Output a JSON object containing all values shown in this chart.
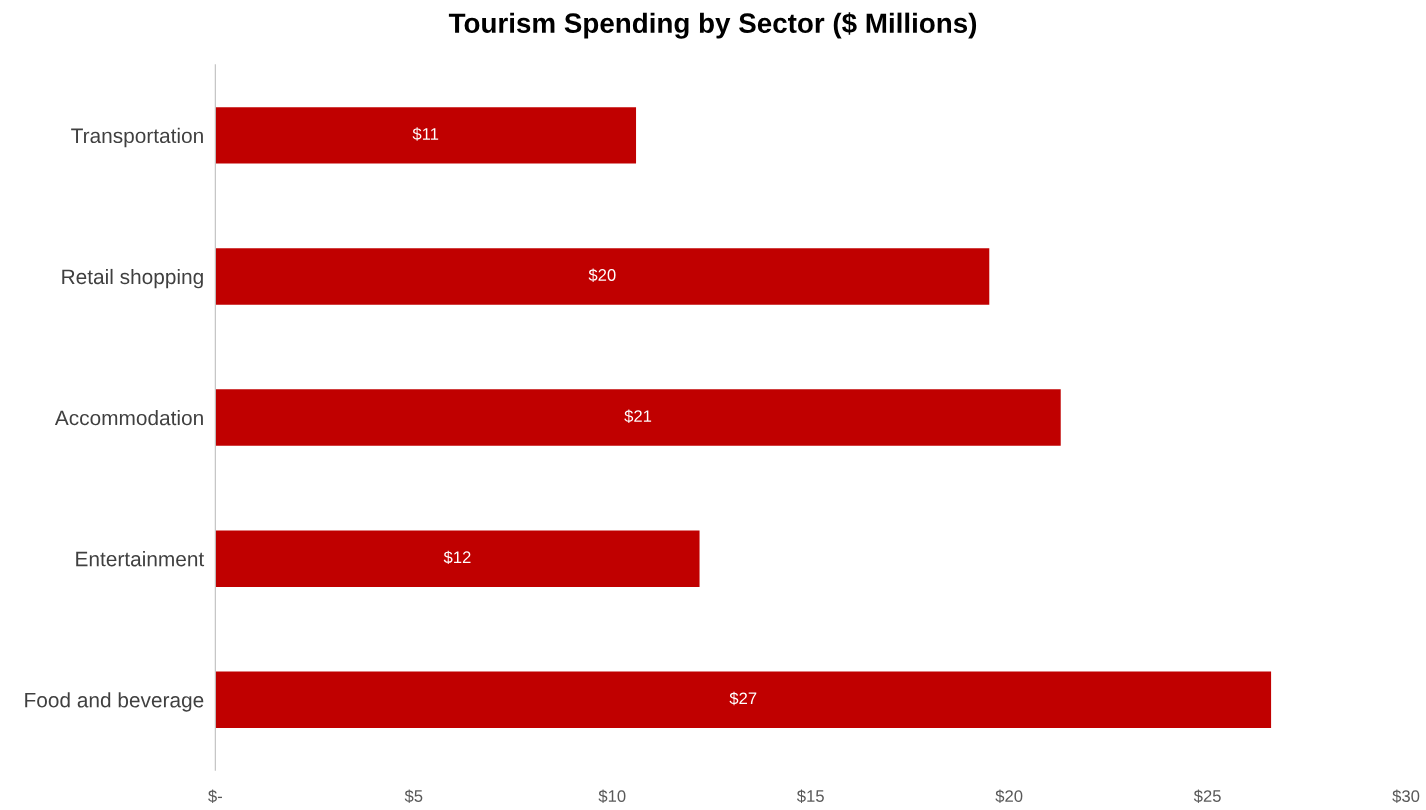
{
  "chart_data": {
    "type": "bar",
    "orientation": "horizontal",
    "title": "Tourism Spending by Sector ($ Millions)",
    "categories": [
      "Transportation",
      "Retail shopping",
      "Accommodation",
      "Entertainment",
      "Food and beverage"
    ],
    "series": [
      {
        "color": "#c00000",
        "values": [
          10.6,
          19.5,
          21.3,
          12.2,
          26.6
        ],
        "value_labels": [
          "$11",
          "$20",
          "$21",
          "$12",
          "$27"
        ]
      }
    ],
    "xlim": [
      0,
      30
    ],
    "xticks": [
      {
        "value": 0,
        "label": "$-"
      },
      {
        "value": 5,
        "label": "$5"
      },
      {
        "value": 10,
        "label": "$10"
      },
      {
        "value": 15,
        "label": "$15"
      },
      {
        "value": 20,
        "label": "$20"
      },
      {
        "value": 25,
        "label": "$25"
      },
      {
        "value": 30,
        "label": "$30"
      }
    ],
    "grid": false
  }
}
